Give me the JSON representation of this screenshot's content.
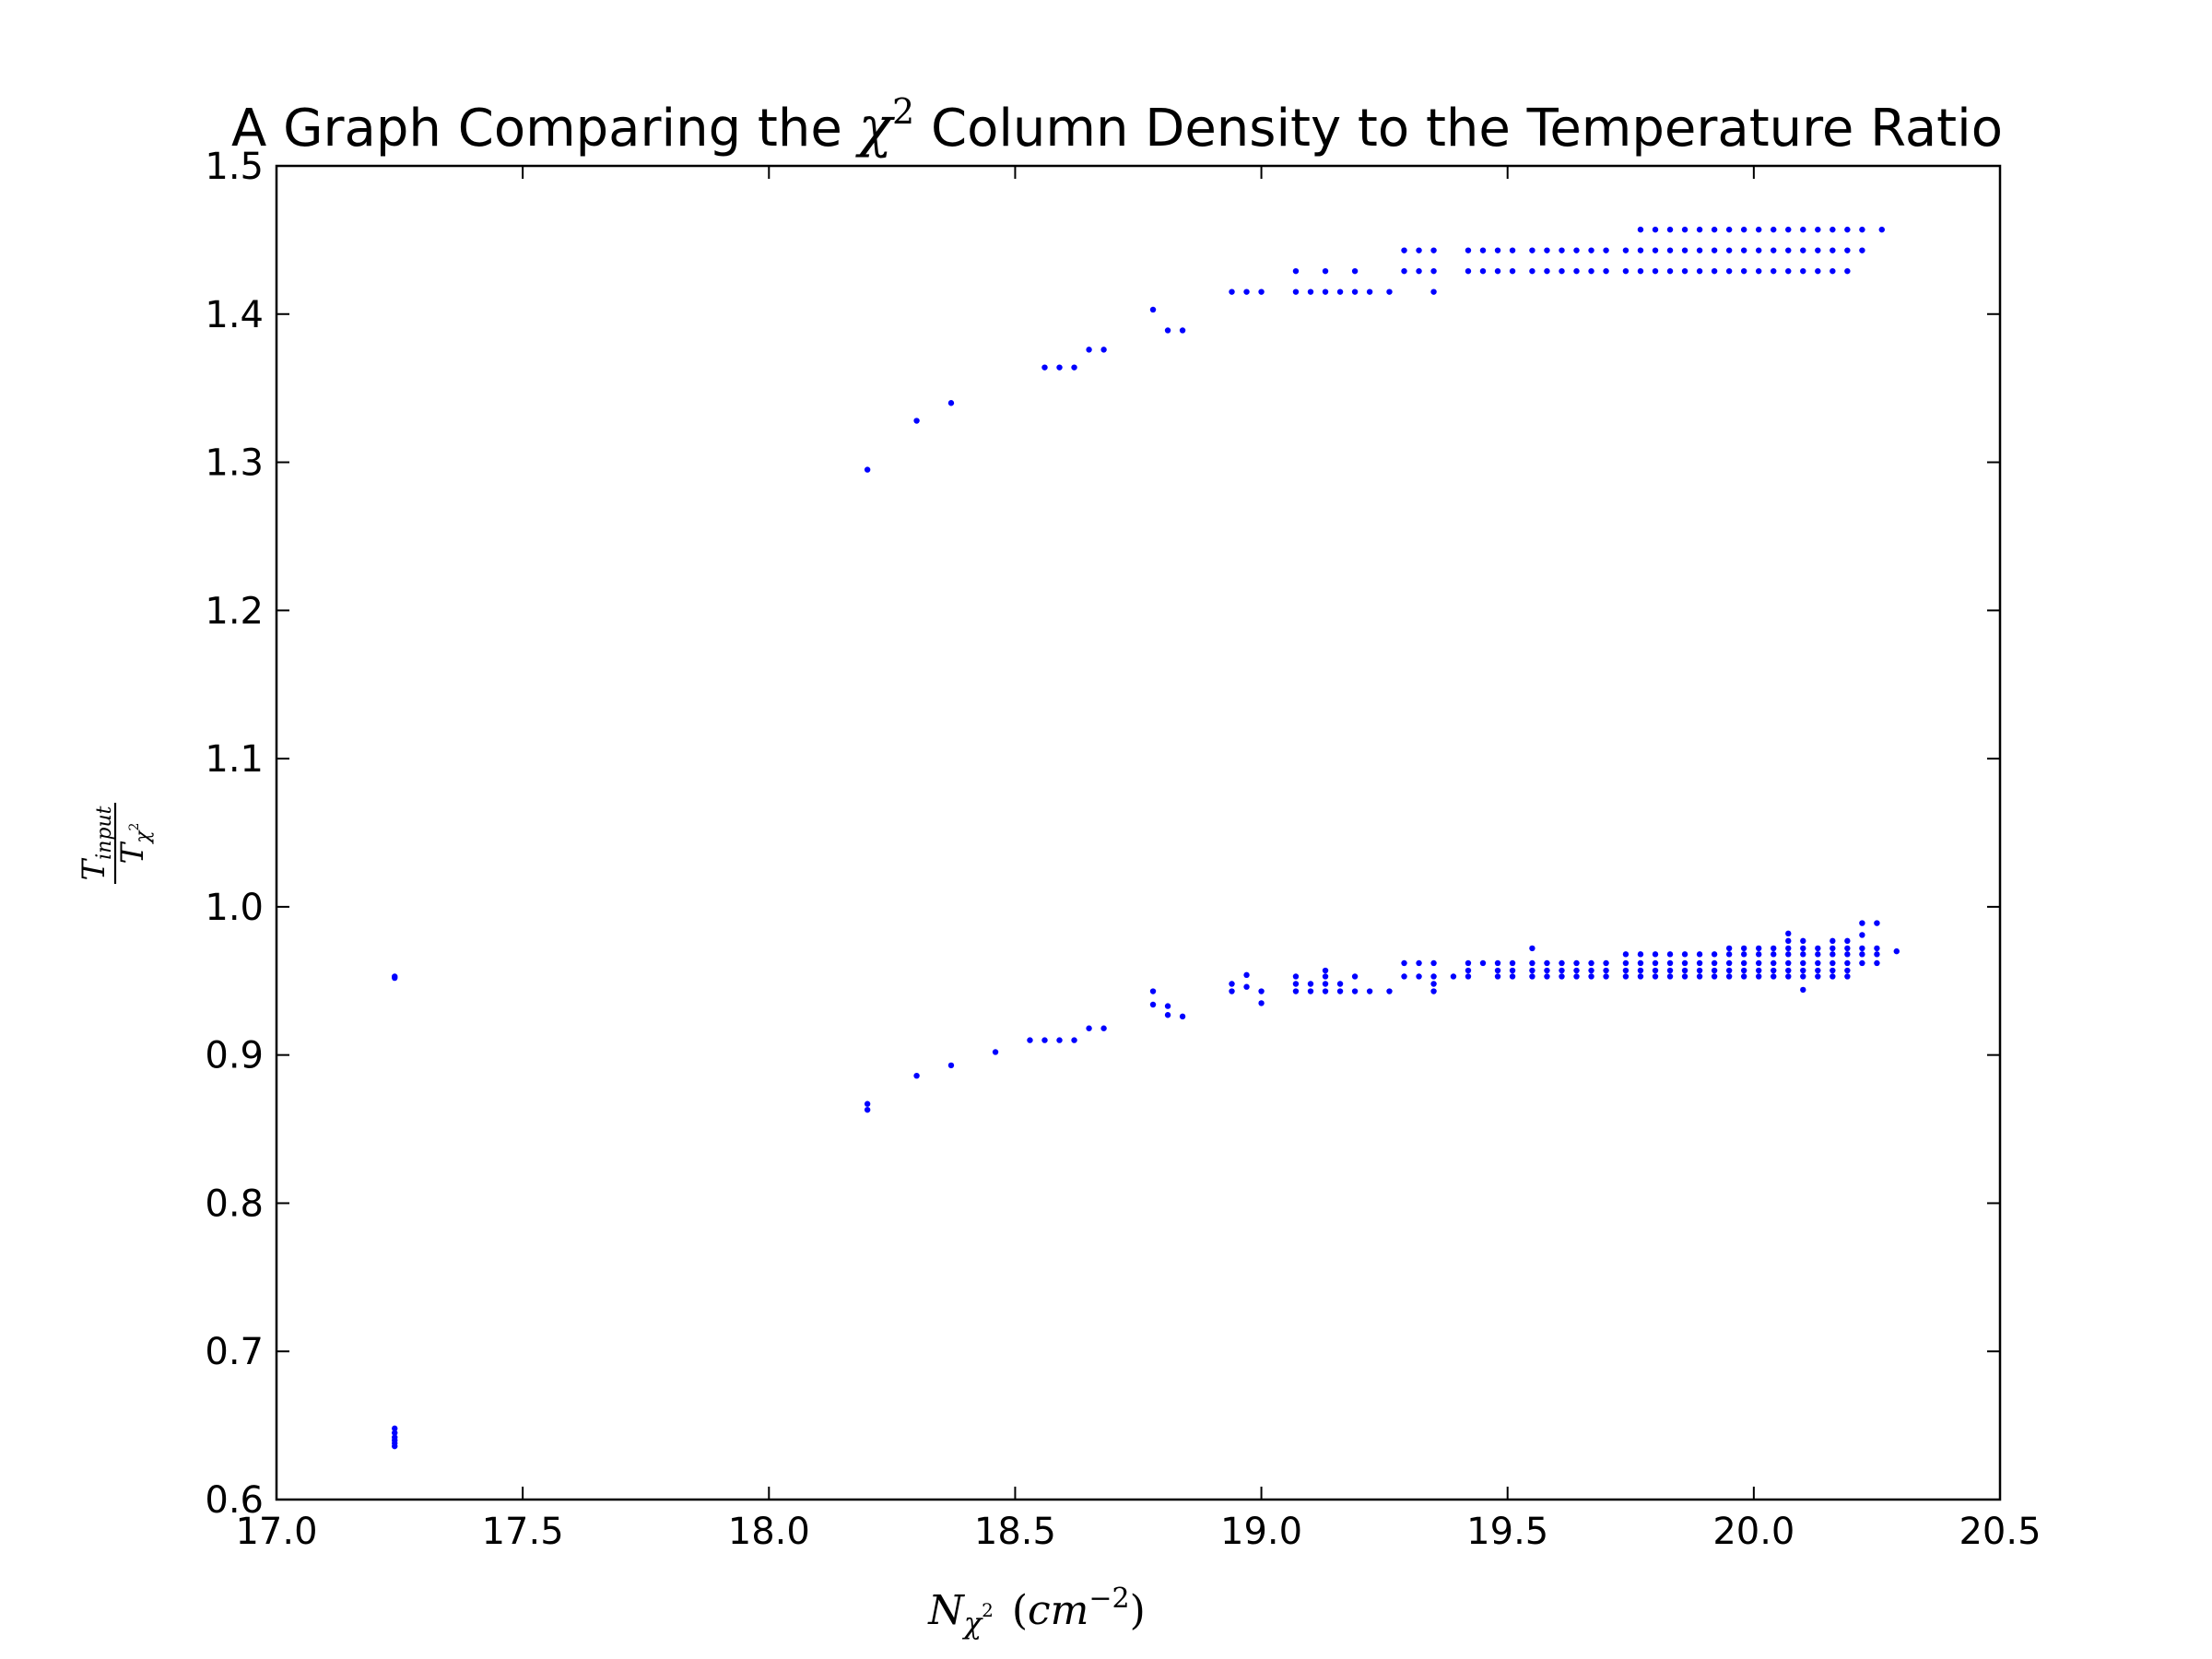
{
  "chart_data": {
    "type": "scatter",
    "title": {
      "prefix": "A Graph Comparing the ",
      "math_base": "χ",
      "math_sup": "2",
      "suffix": " Column Density to the Temperature Ratio"
    },
    "xlabel": {
      "base": "N",
      "sub_base": "χ",
      "sub_sup": "2",
      "units_open": "(",
      "units_base": "cm",
      "units_sup": "−2",
      "units_close": ")"
    },
    "ylabel": {
      "num_base": "T",
      "num_sub": "input",
      "den_base": "T",
      "den_sub_base": "χ",
      "den_sub_sup": "2"
    },
    "xlim": [
      17.0,
      20.5
    ],
    "ylim": [
      0.6,
      1.5
    ],
    "xticks": [
      17.0,
      17.5,
      18.0,
      18.5,
      19.0,
      19.5,
      20.0,
      20.5
    ],
    "xtick_labels": [
      "17.0",
      "17.5",
      "18.0",
      "18.5",
      "19.0",
      "19.5",
      "20.0",
      "20.5"
    ],
    "yticks": [
      0.6,
      0.7,
      0.8,
      0.9,
      1.0,
      1.1,
      1.2,
      1.3,
      1.4,
      1.5
    ],
    "ytick_labels": [
      "0.6",
      "0.7",
      "0.8",
      "0.9",
      "1.0",
      "1.1",
      "1.2",
      "1.3",
      "1.4",
      "1.5"
    ],
    "grid": false,
    "marker_color": "#0000ff",
    "series": [
      {
        "points": [
          [
            17.24,
            0.953
          ],
          [
            17.24,
            0.952
          ],
          [
            17.24,
            0.648
          ],
          [
            17.24,
            0.645
          ],
          [
            17.24,
            0.642
          ],
          [
            17.24,
            0.64
          ],
          [
            17.24,
            0.638
          ],
          [
            17.24,
            0.636
          ],
          [
            18.2,
            0.867
          ],
          [
            18.2,
            0.863
          ],
          [
            18.3,
            0.886
          ],
          [
            18.37,
            0.893
          ],
          [
            18.46,
            0.902
          ],
          [
            18.53,
            0.91
          ],
          [
            18.56,
            0.91
          ],
          [
            18.59,
            0.91
          ],
          [
            18.62,
            0.91
          ],
          [
            18.65,
            0.918
          ],
          [
            18.68,
            0.918
          ],
          [
            18.78,
            0.943
          ],
          [
            18.78,
            0.934
          ],
          [
            18.81,
            0.933
          ],
          [
            18.81,
            0.927
          ],
          [
            18.84,
            0.926
          ],
          [
            18.94,
            0.948
          ],
          [
            18.94,
            0.943
          ],
          [
            18.97,
            0.954
          ],
          [
            18.97,
            0.946
          ],
          [
            19.0,
            0.943
          ],
          [
            19.0,
            0.935
          ],
          [
            19.07,
            0.953
          ],
          [
            19.07,
            0.948
          ],
          [
            19.07,
            0.943
          ],
          [
            19.1,
            0.948
          ],
          [
            19.1,
            0.943
          ],
          [
            19.13,
            0.957
          ],
          [
            19.13,
            0.953
          ],
          [
            19.13,
            0.948
          ],
          [
            19.13,
            0.943
          ],
          [
            19.16,
            0.948
          ],
          [
            19.16,
            0.943
          ],
          [
            19.19,
            0.953
          ],
          [
            19.19,
            0.943
          ],
          [
            19.22,
            0.943
          ],
          [
            19.26,
            0.943
          ],
          [
            19.29,
            0.962
          ],
          [
            19.29,
            0.953
          ],
          [
            19.32,
            0.962
          ],
          [
            19.32,
            0.953
          ],
          [
            19.35,
            0.962
          ],
          [
            19.35,
            0.953
          ],
          [
            19.35,
            0.948
          ],
          [
            19.35,
            0.943
          ],
          [
            19.39,
            0.953
          ],
          [
            19.42,
            0.962
          ],
          [
            19.42,
            0.957
          ],
          [
            19.42,
            0.953
          ],
          [
            19.45,
            0.962
          ],
          [
            19.48,
            0.962
          ],
          [
            19.48,
            0.957
          ],
          [
            19.48,
            0.953
          ],
          [
            19.51,
            0.962
          ],
          [
            19.51,
            0.957
          ],
          [
            19.51,
            0.953
          ],
          [
            19.55,
            0.972
          ],
          [
            19.55,
            0.962
          ],
          [
            19.55,
            0.957
          ],
          [
            19.55,
            0.953
          ],
          [
            19.58,
            0.962
          ],
          [
            19.58,
            0.957
          ],
          [
            19.58,
            0.953
          ],
          [
            19.61,
            0.962
          ],
          [
            19.61,
            0.957
          ],
          [
            19.61,
            0.953
          ],
          [
            19.64,
            0.962
          ],
          [
            19.64,
            0.957
          ],
          [
            19.64,
            0.953
          ],
          [
            19.67,
            0.962
          ],
          [
            19.67,
            0.957
          ],
          [
            19.67,
            0.953
          ],
          [
            19.7,
            0.962
          ],
          [
            19.7,
            0.957
          ],
          [
            19.7,
            0.953
          ],
          [
            19.74,
            0.968
          ],
          [
            19.74,
            0.962
          ],
          [
            19.74,
            0.957
          ],
          [
            19.74,
            0.953
          ],
          [
            19.77,
            0.968
          ],
          [
            19.77,
            0.962
          ],
          [
            19.77,
            0.957
          ],
          [
            19.77,
            0.953
          ],
          [
            19.8,
            0.968
          ],
          [
            19.8,
            0.962
          ],
          [
            19.8,
            0.957
          ],
          [
            19.8,
            0.953
          ],
          [
            19.83,
            0.968
          ],
          [
            19.83,
            0.962
          ],
          [
            19.83,
            0.957
          ],
          [
            19.83,
            0.953
          ],
          [
            19.86,
            0.968
          ],
          [
            19.86,
            0.962
          ],
          [
            19.86,
            0.957
          ],
          [
            19.86,
            0.953
          ],
          [
            19.89,
            0.968
          ],
          [
            19.89,
            0.962
          ],
          [
            19.89,
            0.957
          ],
          [
            19.89,
            0.953
          ],
          [
            19.92,
            0.968
          ],
          [
            19.92,
            0.962
          ],
          [
            19.92,
            0.957
          ],
          [
            19.92,
            0.953
          ],
          [
            19.95,
            0.972
          ],
          [
            19.95,
            0.968
          ],
          [
            19.95,
            0.962
          ],
          [
            19.95,
            0.957
          ],
          [
            19.95,
            0.953
          ],
          [
            19.98,
            0.972
          ],
          [
            19.98,
            0.968
          ],
          [
            19.98,
            0.962
          ],
          [
            19.98,
            0.957
          ],
          [
            19.98,
            0.953
          ],
          [
            20.01,
            0.972
          ],
          [
            20.01,
            0.968
          ],
          [
            20.01,
            0.962
          ],
          [
            20.01,
            0.957
          ],
          [
            20.01,
            0.953
          ],
          [
            20.04,
            0.972
          ],
          [
            20.04,
            0.968
          ],
          [
            20.04,
            0.962
          ],
          [
            20.04,
            0.957
          ],
          [
            20.04,
            0.953
          ],
          [
            20.07,
            0.982
          ],
          [
            20.07,
            0.977
          ],
          [
            20.07,
            0.972
          ],
          [
            20.07,
            0.968
          ],
          [
            20.07,
            0.962
          ],
          [
            20.07,
            0.957
          ],
          [
            20.07,
            0.953
          ],
          [
            20.1,
            0.977
          ],
          [
            20.1,
            0.972
          ],
          [
            20.1,
            0.968
          ],
          [
            20.1,
            0.962
          ],
          [
            20.1,
            0.957
          ],
          [
            20.1,
            0.953
          ],
          [
            20.1,
            0.944
          ],
          [
            20.13,
            0.972
          ],
          [
            20.13,
            0.968
          ],
          [
            20.13,
            0.962
          ],
          [
            20.13,
            0.957
          ],
          [
            20.13,
            0.953
          ],
          [
            20.16,
            0.977
          ],
          [
            20.16,
            0.972
          ],
          [
            20.16,
            0.968
          ],
          [
            20.16,
            0.962
          ],
          [
            20.16,
            0.957
          ],
          [
            20.16,
            0.953
          ],
          [
            20.19,
            0.977
          ],
          [
            20.19,
            0.972
          ],
          [
            20.19,
            0.968
          ],
          [
            20.19,
            0.962
          ],
          [
            20.19,
            0.957
          ],
          [
            20.19,
            0.953
          ],
          [
            20.22,
            0.989
          ],
          [
            20.22,
            0.981
          ],
          [
            20.22,
            0.972
          ],
          [
            20.22,
            0.968
          ],
          [
            20.22,
            0.962
          ],
          [
            20.25,
            0.989
          ],
          [
            20.25,
            0.972
          ],
          [
            20.25,
            0.968
          ],
          [
            20.25,
            0.962
          ],
          [
            20.29,
            0.97
          ],
          [
            18.2,
            1.295
          ],
          [
            18.3,
            1.328
          ],
          [
            18.37,
            1.34
          ],
          [
            18.56,
            1.364
          ],
          [
            18.59,
            1.364
          ],
          [
            18.62,
            1.364
          ],
          [
            18.65,
            1.376
          ],
          [
            18.68,
            1.376
          ],
          [
            18.78,
            1.403
          ],
          [
            18.81,
            1.389
          ],
          [
            18.84,
            1.389
          ],
          [
            18.94,
            1.415
          ],
          [
            18.97,
            1.415
          ],
          [
            19.0,
            1.415
          ],
          [
            19.07,
            1.429
          ],
          [
            19.07,
            1.415
          ],
          [
            19.1,
            1.415
          ],
          [
            19.13,
            1.429
          ],
          [
            19.13,
            1.415
          ],
          [
            19.16,
            1.415
          ],
          [
            19.19,
            1.429
          ],
          [
            19.19,
            1.415
          ],
          [
            19.22,
            1.415
          ],
          [
            19.26,
            1.415
          ],
          [
            19.29,
            1.443
          ],
          [
            19.29,
            1.429
          ],
          [
            19.32,
            1.443
          ],
          [
            19.32,
            1.429
          ],
          [
            19.35,
            1.443
          ],
          [
            19.35,
            1.429
          ],
          [
            19.35,
            1.415
          ],
          [
            19.42,
            1.443
          ],
          [
            19.42,
            1.429
          ],
          [
            19.45,
            1.443
          ],
          [
            19.45,
            1.429
          ],
          [
            19.48,
            1.443
          ],
          [
            19.48,
            1.429
          ],
          [
            19.51,
            1.443
          ],
          [
            19.51,
            1.429
          ],
          [
            19.55,
            1.443
          ],
          [
            19.55,
            1.429
          ],
          [
            19.58,
            1.443
          ],
          [
            19.58,
            1.429
          ],
          [
            19.61,
            1.443
          ],
          [
            19.61,
            1.429
          ],
          [
            19.64,
            1.443
          ],
          [
            19.64,
            1.429
          ],
          [
            19.67,
            1.443
          ],
          [
            19.67,
            1.429
          ],
          [
            19.7,
            1.443
          ],
          [
            19.7,
            1.429
          ],
          [
            19.74,
            1.443
          ],
          [
            19.74,
            1.429
          ],
          [
            19.77,
            1.457
          ],
          [
            19.77,
            1.443
          ],
          [
            19.77,
            1.429
          ],
          [
            19.8,
            1.457
          ],
          [
            19.8,
            1.443
          ],
          [
            19.8,
            1.429
          ],
          [
            19.83,
            1.457
          ],
          [
            19.83,
            1.443
          ],
          [
            19.83,
            1.429
          ],
          [
            19.86,
            1.457
          ],
          [
            19.86,
            1.443
          ],
          [
            19.86,
            1.429
          ],
          [
            19.89,
            1.457
          ],
          [
            19.89,
            1.443
          ],
          [
            19.89,
            1.429
          ],
          [
            19.92,
            1.457
          ],
          [
            19.92,
            1.443
          ],
          [
            19.92,
            1.429
          ],
          [
            19.95,
            1.457
          ],
          [
            19.95,
            1.443
          ],
          [
            19.95,
            1.429
          ],
          [
            19.98,
            1.457
          ],
          [
            19.98,
            1.443
          ],
          [
            19.98,
            1.429
          ],
          [
            20.01,
            1.457
          ],
          [
            20.01,
            1.443
          ],
          [
            20.01,
            1.429
          ],
          [
            20.04,
            1.457
          ],
          [
            20.04,
            1.443
          ],
          [
            20.04,
            1.429
          ],
          [
            20.07,
            1.457
          ],
          [
            20.07,
            1.443
          ],
          [
            20.07,
            1.429
          ],
          [
            20.1,
            1.457
          ],
          [
            20.1,
            1.443
          ],
          [
            20.1,
            1.429
          ],
          [
            20.13,
            1.457
          ],
          [
            20.13,
            1.443
          ],
          [
            20.13,
            1.429
          ],
          [
            20.16,
            1.457
          ],
          [
            20.16,
            1.443
          ],
          [
            20.16,
            1.429
          ],
          [
            20.19,
            1.457
          ],
          [
            20.19,
            1.443
          ],
          [
            20.19,
            1.429
          ],
          [
            20.22,
            1.457
          ],
          [
            20.22,
            1.443
          ],
          [
            20.26,
            1.457
          ]
        ]
      }
    ]
  }
}
